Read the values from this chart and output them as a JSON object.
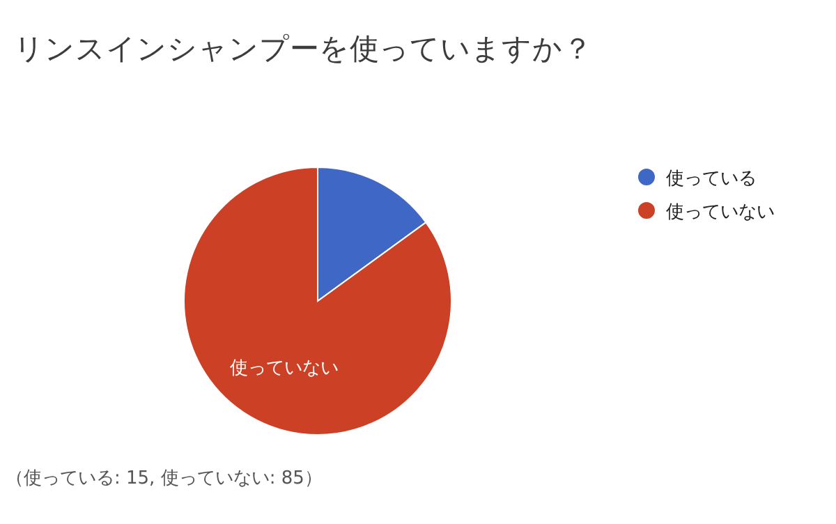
{
  "chart_data": {
    "type": "pie",
    "title": "リンスインシャンプーを使っていますか？",
    "categories": [
      "使っている",
      "使っていない"
    ],
    "values": [
      15,
      85
    ],
    "colors": [
      "#3f67c6",
      "#cc4125"
    ],
    "legend": "right",
    "annotations": [
      "（使っている: 15, 使っていない: 85）"
    ]
  }
}
